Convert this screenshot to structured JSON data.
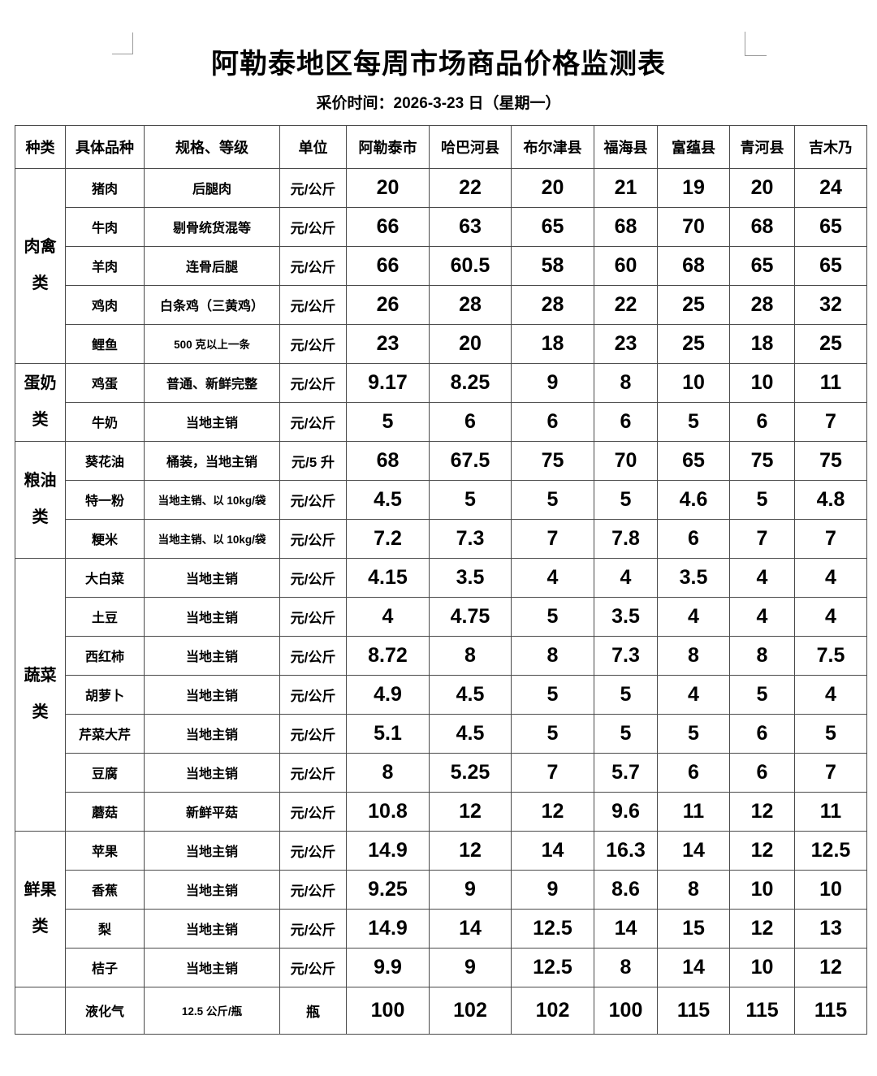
{
  "document": {
    "title": "阿勒泰地区每周市场商品价格监测表",
    "subtitle": "采价时间：2026-3-23 日（星期一）"
  },
  "table": {
    "headers": [
      "种类",
      "具体品种",
      "规格、等级",
      "单位",
      "阿勒泰市",
      "哈巴河县",
      "布尔津县",
      "福海县",
      "富蕴县",
      "青河县",
      "吉木乃"
    ],
    "groups": [
      {
        "category": "肉禽类",
        "rows": [
          {
            "item": "猪肉",
            "spec": "后腿肉",
            "spec_small": false,
            "unit": "元/公斤",
            "prices": [
              20,
              22,
              20,
              21,
              19,
              20,
              24
            ]
          },
          {
            "item": "牛肉",
            "spec": "剔骨统货混等",
            "spec_small": false,
            "unit": "元/公斤",
            "prices": [
              66,
              63,
              65,
              68,
              70,
              68,
              65
            ]
          },
          {
            "item": "羊肉",
            "spec": "连骨后腿",
            "spec_small": false,
            "unit": "元/公斤",
            "prices": [
              66,
              60.5,
              58,
              60,
              68,
              65,
              65
            ]
          },
          {
            "item": "鸡肉",
            "spec": "白条鸡（三黄鸡）",
            "spec_small": false,
            "unit": "元/公斤",
            "prices": [
              26,
              28,
              28,
              22,
              25,
              28,
              32
            ]
          },
          {
            "item": "鲤鱼",
            "spec": "500 克以上一条",
            "spec_small": true,
            "unit": "元/公斤",
            "prices": [
              23,
              20,
              18,
              23,
              25,
              18,
              25
            ]
          }
        ]
      },
      {
        "category": "蛋奶类",
        "rows": [
          {
            "item": "鸡蛋",
            "spec": "普通、新鲜完整",
            "spec_small": false,
            "unit": "元/公斤",
            "prices": [
              9.17,
              8.25,
              9,
              8,
              10,
              10,
              11
            ]
          },
          {
            "item": "牛奶",
            "spec": "当地主销",
            "spec_small": false,
            "unit": "元/公斤",
            "prices": [
              5,
              6,
              6,
              6,
              5,
              6,
              7
            ]
          }
        ]
      },
      {
        "category": "粮油类",
        "rows": [
          {
            "item": "葵花油",
            "spec": "桶装，当地主销",
            "spec_small": false,
            "unit": "元/5 升",
            "prices": [
              68,
              67.5,
              75,
              70,
              65,
              75,
              75
            ]
          },
          {
            "item": "特一粉",
            "spec": "当地主销、以 10kg/袋",
            "spec_small": true,
            "unit": "元/公斤",
            "prices": [
              4.5,
              5,
              5,
              5,
              4.6,
              5,
              4.8
            ]
          },
          {
            "item": "粳米",
            "spec": "当地主销、以 10kg/袋",
            "spec_small": true,
            "unit": "元/公斤",
            "prices": [
              7.2,
              7.3,
              7,
              7.8,
              6,
              7,
              7
            ]
          }
        ]
      },
      {
        "category": "蔬菜类",
        "rows": [
          {
            "item": "大白菜",
            "spec": "当地主销",
            "spec_small": false,
            "unit": "元/公斤",
            "prices": [
              4.15,
              3.5,
              4,
              4,
              3.5,
              4,
              4
            ]
          },
          {
            "item": "土豆",
            "spec": "当地主销",
            "spec_small": false,
            "unit": "元/公斤",
            "prices": [
              4,
              4.75,
              5,
              3.5,
              4,
              4,
              4
            ]
          },
          {
            "item": "西红柿",
            "spec": "当地主销",
            "spec_small": false,
            "unit": "元/公斤",
            "prices": [
              8.72,
              8,
              8,
              7.3,
              8,
              8,
              7.5
            ]
          },
          {
            "item": "胡萝卜",
            "spec": "当地主销",
            "spec_small": false,
            "unit": "元/公斤",
            "prices": [
              4.9,
              4.5,
              5,
              5,
              4,
              5,
              4
            ]
          },
          {
            "item": "芹菜大芹",
            "spec": "当地主销",
            "spec_small": false,
            "unit": "元/公斤",
            "prices": [
              5.1,
              4.5,
              5,
              5,
              5,
              6,
              5
            ]
          },
          {
            "item": "豆腐",
            "spec": "当地主销",
            "spec_small": false,
            "unit": "元/公斤",
            "prices": [
              8,
              5.25,
              7,
              5.7,
              6,
              6,
              7
            ]
          },
          {
            "item": "蘑菇",
            "spec": "新鲜平菇",
            "spec_small": false,
            "unit": "元/公斤",
            "prices": [
              10.8,
              12,
              12,
              9.6,
              11,
              12,
              11
            ]
          }
        ]
      },
      {
        "category": "鲜果类",
        "rows": [
          {
            "item": "苹果",
            "spec": "当地主销",
            "spec_small": false,
            "unit": "元/公斤",
            "prices": [
              14.9,
              12,
              14,
              16.3,
              14,
              12,
              12.5
            ]
          },
          {
            "item": "香蕉",
            "spec": "当地主销",
            "spec_small": false,
            "unit": "元/公斤",
            "prices": [
              9.25,
              9,
              9,
              8.6,
              8,
              10,
              10
            ]
          },
          {
            "item": "梨",
            "spec": "当地主销",
            "spec_small": false,
            "unit": "元/公斤",
            "prices": [
              14.9,
              14,
              12.5,
              14,
              15,
              12,
              13
            ]
          },
          {
            "item": "桔子",
            "spec": "当地主销",
            "spec_small": false,
            "unit": "元/公斤",
            "prices": [
              9.9,
              9,
              12.5,
              8,
              14,
              10,
              12
            ]
          }
        ]
      },
      {
        "category": "",
        "rows": [
          {
            "item": "液化气",
            "spec": "12.5 公斤/瓶",
            "spec_small": true,
            "unit": "瓶",
            "prices": [
              100,
              102,
              102,
              100,
              115,
              115,
              115
            ]
          }
        ]
      }
    ]
  }
}
